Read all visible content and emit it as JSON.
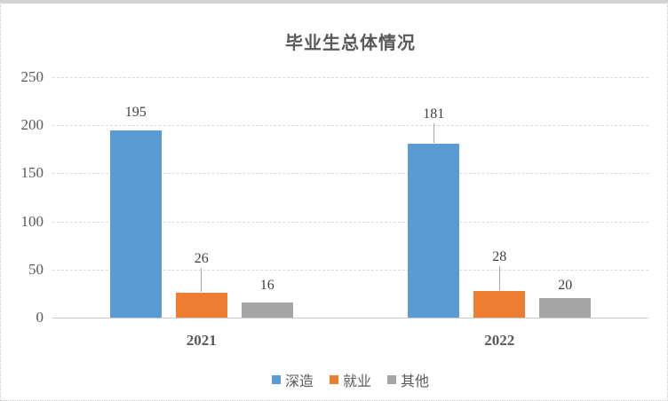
{
  "chart_title": "毕业生总体情况",
  "chart_data": {
    "type": "bar",
    "title": "毕业生总体情况",
    "categories": [
      "2021",
      "2022"
    ],
    "series": [
      {
        "name": "深造",
        "color": "#5B9BD5",
        "values": [
          195,
          181
        ]
      },
      {
        "name": "就业",
        "color": "#ED7D31",
        "values": [
          26,
          28
        ]
      },
      {
        "name": "其他",
        "color": "#A5A5A5",
        "values": [
          16,
          20
        ]
      }
    ],
    "ylim": [
      0,
      250
    ],
    "yticks": [
      0,
      50,
      100,
      150,
      200,
      250
    ],
    "grid": true,
    "data_labels": true,
    "legend_position": "bottom",
    "xlabel": "",
    "ylabel": ""
  },
  "colors": {
    "series_blue": "#5B9BD5",
    "series_orange": "#ED7D31",
    "series_gray": "#A5A5A5",
    "gridline": "#D9D9D9",
    "text": "#595959"
  }
}
